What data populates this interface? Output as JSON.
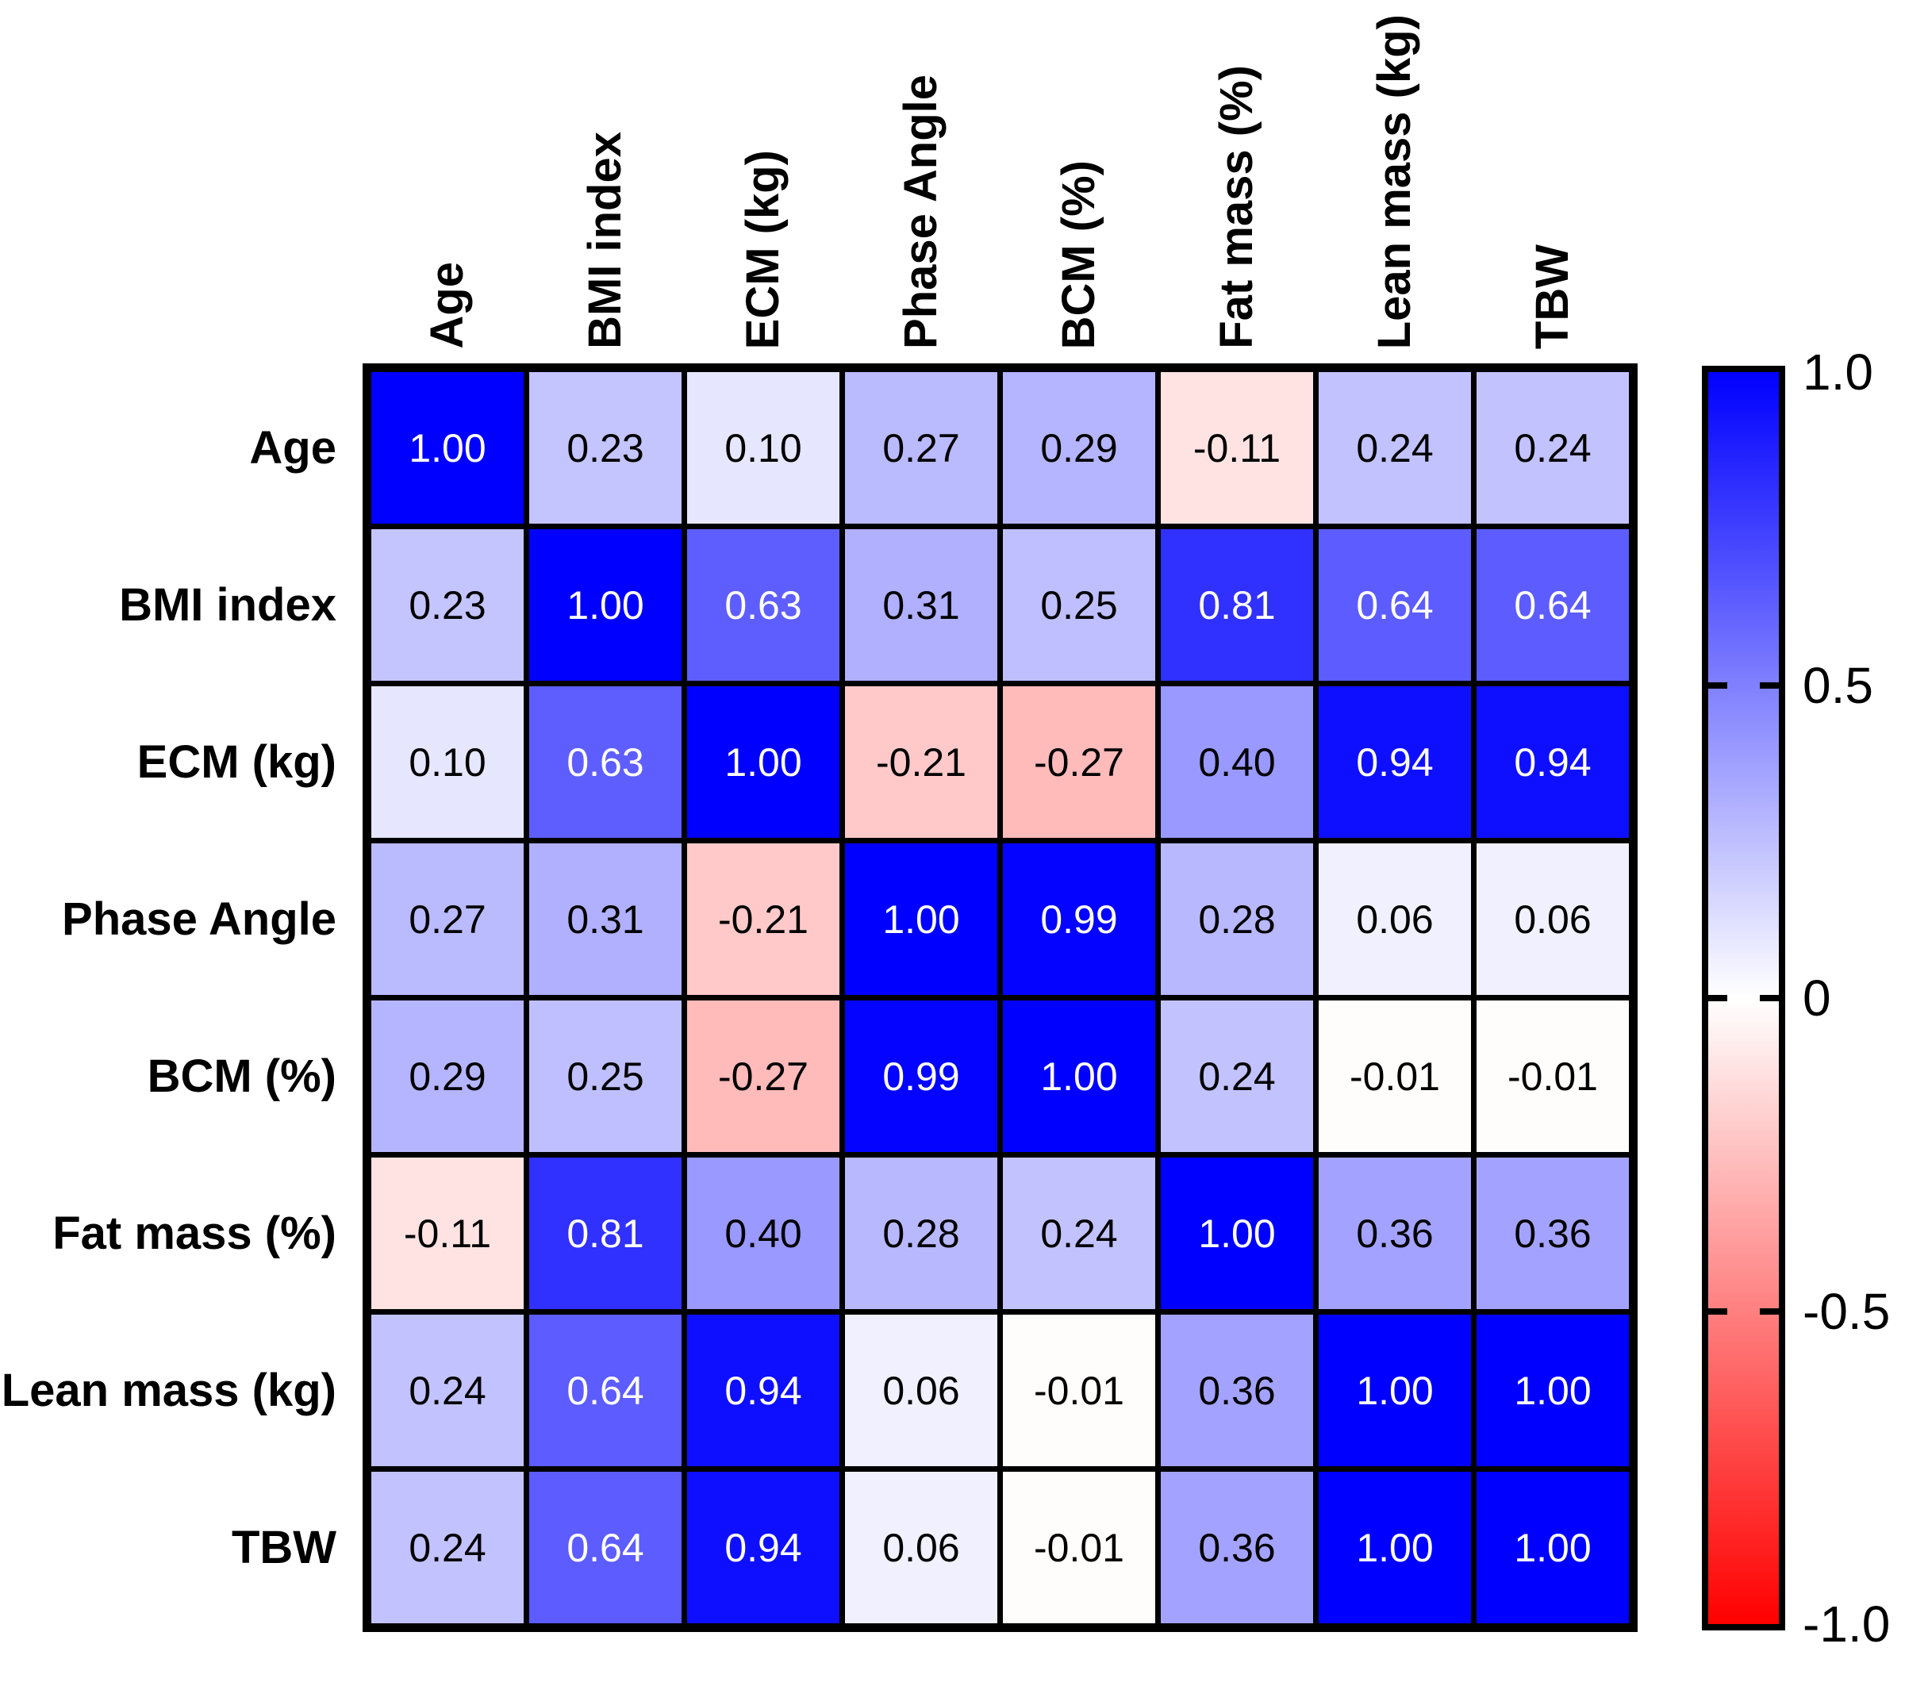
{
  "chart_data": {
    "type": "heatmap",
    "title": "",
    "variables": [
      "Age",
      "BMI index",
      "ECM (kg)",
      "Phase Angle",
      "BCM (%)",
      "Fat mass (%)",
      "Lean mass (kg)",
      "TBW"
    ],
    "matrix": [
      [
        1.0,
        0.23,
        0.1,
        0.27,
        0.29,
        -0.11,
        0.24,
        0.24
      ],
      [
        0.23,
        1.0,
        0.63,
        0.31,
        0.25,
        0.81,
        0.64,
        0.64
      ],
      [
        0.1,
        0.63,
        1.0,
        -0.21,
        -0.27,
        0.4,
        0.94,
        0.94
      ],
      [
        0.27,
        0.31,
        -0.21,
        1.0,
        0.99,
        0.28,
        0.06,
        0.06
      ],
      [
        0.29,
        0.25,
        -0.27,
        0.99,
        1.0,
        0.24,
        -0.01,
        -0.01
      ],
      [
        -0.11,
        0.81,
        0.4,
        0.28,
        0.24,
        1.0,
        0.36,
        0.36
      ],
      [
        0.24,
        0.64,
        0.94,
        0.06,
        -0.01,
        0.36,
        1.0,
        1.0
      ],
      [
        0.24,
        0.64,
        0.94,
        0.06,
        -0.01,
        0.36,
        1.0,
        1.0
      ]
    ],
    "value_decimals": 2,
    "cell_text_white_threshold": 0.5,
    "grid": true,
    "colorbar": {
      "position": "right",
      "min": -1.0,
      "max": 1.0,
      "color_top": "#0000FF",
      "color_mid": "#FFFFFF",
      "color_bottom": "#FF0000",
      "tick_values": [
        1.0,
        0.5,
        0,
        -0.5,
        -1.0
      ],
      "tick_labels": [
        "1.0",
        "0.5",
        "0",
        "-0.5",
        "-1.0"
      ]
    }
  }
}
